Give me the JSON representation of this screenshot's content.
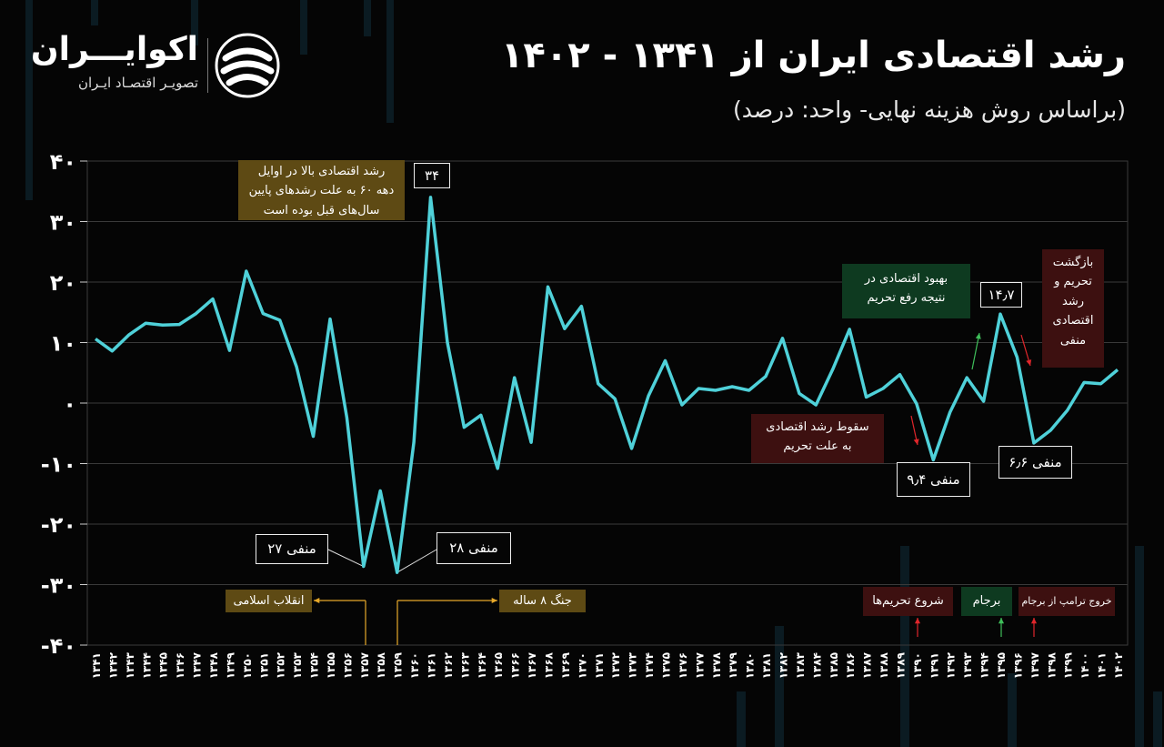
{
  "header": {
    "title": "رشد اقتصادی ایران از ۱۳۴۱ - ۱۴۰۲",
    "subtitle": "(براساس روش هزینه نهایی- واحد: درصد)"
  },
  "logo": {
    "name": "اکوایـــران",
    "tagline": "تصویـر اقتصـاد ایـران"
  },
  "colors": {
    "line": "#4fd1d9",
    "grid": "#3a3a3a",
    "gold": "#5e4a14",
    "red": "#3d1010",
    "green": "#0e3a20",
    "arrow_gold": "#e6a82a",
    "arrow_red": "#e0262b",
    "arrow_green": "#3fbf5a"
  },
  "chart_data": {
    "type": "line",
    "ylim": [
      -40,
      40
    ],
    "y_ticks": [
      40,
      30,
      20,
      10,
      0,
      -10,
      -20,
      -30,
      -40
    ],
    "y_tick_labels": [
      "۴۰",
      "۳۰",
      "۲۰",
      "۱۰",
      "۰",
      "-۱۰",
      "-۲۰",
      "-۳۰",
      "-۴۰"
    ],
    "x": [
      "۱۳۴۱",
      "۱۳۴۲",
      "۱۳۴۳",
      "۱۳۴۴",
      "۱۳۴۵",
      "۱۳۴۶",
      "۱۳۴۷",
      "۱۳۴۸",
      "۱۳۴۹",
      "۱۳۵۰",
      "۱۳۵۱",
      "۱۳۵۲",
      "۱۳۵۳",
      "۱۳۵۴",
      "۱۳۵۵",
      "۱۳۵۶",
      "۱۳۵۷",
      "۱۳۵۸",
      "۱۳۵۹",
      "۱۳۶۰",
      "۱۳۶۱",
      "۱۳۶۲",
      "۱۳۶۳",
      "۱۳۶۴",
      "۱۳۶۵",
      "۱۳۶۶",
      "۱۳۶۷",
      "۱۳۶۸",
      "۱۳۶۹",
      "۱۳۷۰",
      "۱۳۷۱",
      "۱۳۷۲",
      "۱۳۷۳",
      "۱۳۷۴",
      "۱۳۷۵",
      "۱۳۷۶",
      "۱۳۷۷",
      "۱۳۷۸",
      "۱۳۷۹",
      "۱۳۸۰",
      "۱۳۸۱",
      "۱۳۸۲",
      "۱۳۸۳",
      "۱۳۸۴",
      "۱۳۸۵",
      "۱۳۸۶",
      "۱۳۸۷",
      "۱۳۸۸",
      "۱۳۸۹",
      "۱۳۹۰",
      "۱۳۹۱",
      "۱۳۹۲",
      "۱۳۹۳",
      "۱۳۹۴",
      "۱۳۹۵",
      "۱۳۹۶",
      "۱۳۹۷",
      "۱۳۹۸",
      "۱۳۹۹",
      "۱۴۰۰",
      "۱۴۰۱",
      "۱۴۰۲"
    ],
    "values": [
      10.6,
      8.6,
      11.3,
      13.2,
      12.9,
      13.0,
      14.8,
      17.2,
      8.7,
      21.8,
      14.8,
      13.7,
      6.0,
      -5.5,
      13.9,
      -2.4,
      -27.0,
      -14.5,
      -28.0,
      -6.5,
      34.0,
      10.0,
      -4.0,
      -2.0,
      -10.8,
      4.2,
      -6.5,
      19.2,
      12.3,
      16.0,
      3.2,
      0.7,
      -7.5,
      1.2,
      7.0,
      -0.3,
      2.4,
      2.1,
      2.7,
      2.1,
      4.4,
      10.7,
      1.6,
      -0.3,
      5.6,
      12.2,
      1.0,
      2.4,
      4.7,
      -0.1,
      -9.4,
      -1.5,
      4.2,
      0.3,
      14.7,
      7.6,
      -6.6,
      -4.5,
      -1.2,
      3.4,
      3.2,
      5.5
    ],
    "grid": true,
    "annotations": {
      "peak": "۳۴",
      "min_rev": "منفی ۲۷",
      "min_war": "منفی ۲۸",
      "min_90": "منفی ۹٫۴",
      "min_97": "منفی ۶٫۶",
      "peak_95": "۱۴٫۷",
      "note60": "رشد اقتصادی بالا در اوایل دهه ۶۰ به علت رشدهای پایین سال‌های قبل بوده است",
      "improve": "بهبود اقتصادی در نتیجه رفع تحریم",
      "fall": "سقوط رشد اقتصادی به علت تحریم",
      "return": "بازگشت تحریم و رشد اقتصادی منفی",
      "revolution": "انقلاب اسلامی",
      "war": "جنگ ۸ ساله",
      "sanctions": "شروع تحریم‌ها",
      "jcpoa": "برجام",
      "trump": "خروج ترامپ از برجام"
    }
  }
}
